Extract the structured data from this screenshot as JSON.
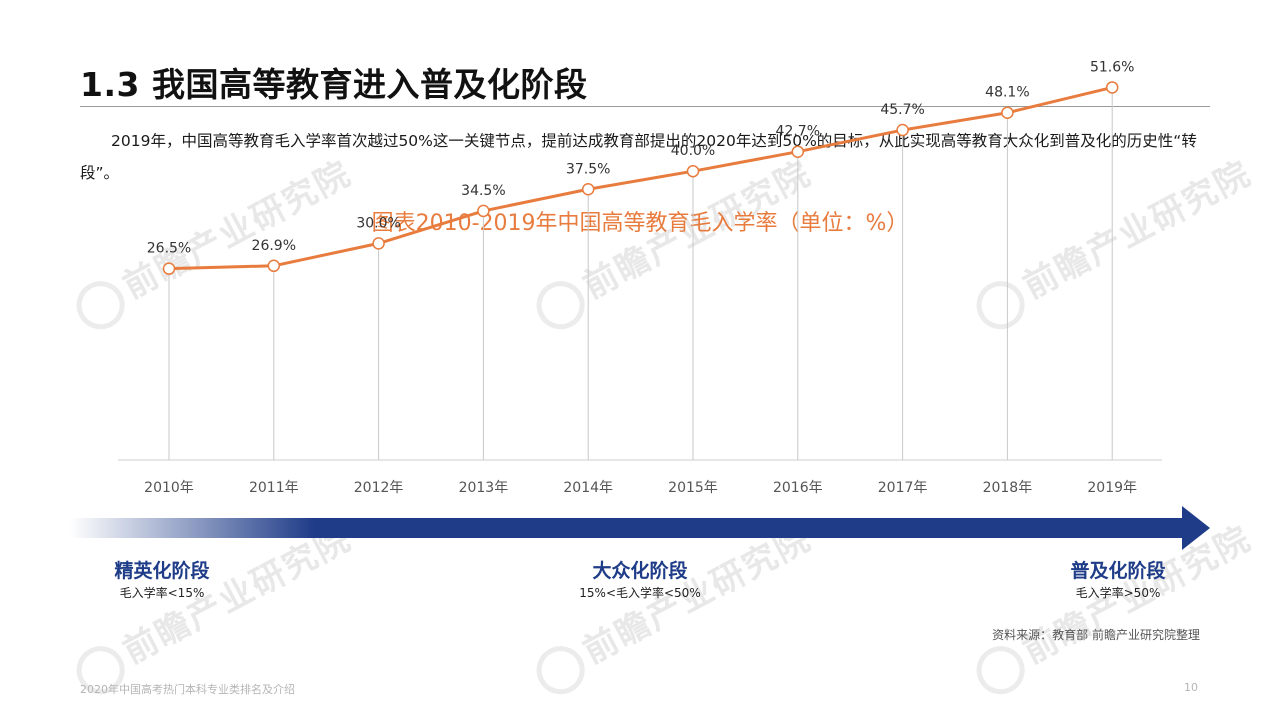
{
  "slide": {
    "title": "1.3 我国高等教育进入普及化阶段",
    "intro": "2019年，中国高等教育毛入学率首次越过50%这一关键节点，提前达成教育部提出的2020年达到50%的目标，从此实现高等教育大众化到普及化的历史性“转段”。"
  },
  "chart_data": {
    "type": "line",
    "title": "图表2010-2019年中国高等教育毛入学率（单位：%）",
    "categories": [
      "2010年",
      "2011年",
      "2012年",
      "2013年",
      "2014年",
      "2015年",
      "2016年",
      "2017年",
      "2018年",
      "2019年"
    ],
    "series": [
      {
        "values": [
          26.5,
          26.9,
          30.0,
          34.5,
          37.5,
          40.0,
          42.7,
          45.7,
          48.1,
          51.6
        ],
        "labels": [
          "26.5%",
          "26.9%",
          "30.0%",
          "34.5%",
          "37.5%",
          "40.0%",
          "42.7%",
          "45.7%",
          "48.1%",
          "51.6%"
        ],
        "color": "#e87c3e"
      }
    ],
    "ylim": [
      0,
      55
    ],
    "drop_lines": true,
    "grid": false,
    "legend": "none"
  },
  "stages": [
    {
      "name": "精英化阶段",
      "desc": "毛入学率<15%"
    },
    {
      "name": "大众化阶段",
      "desc": "15%<毛入学率<50%"
    },
    {
      "name": "普及化阶段",
      "desc": "毛入学率>50%"
    }
  ],
  "colors": {
    "accent_orange": "#e87c3e",
    "stage_blue": "#1f3c88"
  },
  "source": "资料来源：教育部 前瞻产业研究院整理",
  "footer": "2020年中国高考热门本科专业类排名及介绍",
  "page_number": "10",
  "watermark": "前瞻产业研究院"
}
